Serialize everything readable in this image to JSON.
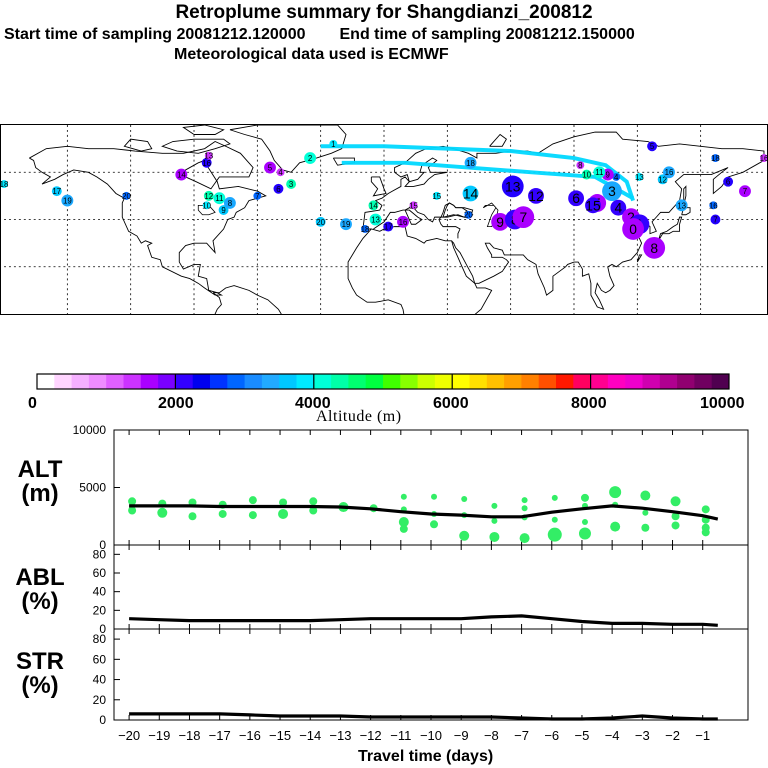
{
  "title": {
    "line1": "Retroplume summary for Shangdianzi_200812",
    "start": "Start time of sampling 20081212.120000",
    "end": "End time of sampling 20081212.150000",
    "line3": "Meteorological data used is ECMWF"
  },
  "map": {
    "markers": [
      {
        "label": "18",
        "lon": -180,
        "lat": 55
      },
      {
        "label": "17",
        "lon": -155,
        "lat": 52
      },
      {
        "label": "19",
        "lon": -150,
        "lat": 48
      },
      {
        "label": "20",
        "lon": -122,
        "lat": 50
      },
      {
        "label": "16",
        "lon": -84,
        "lat": 64
      },
      {
        "label": "14",
        "lon": -96,
        "lat": 59
      },
      {
        "label": "13",
        "lon": -83,
        "lat": 67
      },
      {
        "label": "12",
        "lon": -83,
        "lat": 50
      },
      {
        "label": "11",
        "lon": -78,
        "lat": 49
      },
      {
        "label": "10",
        "lon": -84,
        "lat": 46
      },
      {
        "label": "9",
        "lon": -76,
        "lat": 44
      },
      {
        "label": "8",
        "lon": -73,
        "lat": 47
      },
      {
        "label": "7",
        "lon": -60,
        "lat": 50
      },
      {
        "label": "6",
        "lon": -50,
        "lat": 53
      },
      {
        "label": "5",
        "lon": -54,
        "lat": 62
      },
      {
        "label": "4",
        "lon": -49,
        "lat": 60
      },
      {
        "label": "3",
        "lon": -44,
        "lat": 55
      },
      {
        "label": "2",
        "lon": -35,
        "lat": 66
      },
      {
        "label": "1",
        "lon": -24,
        "lat": 72
      },
      {
        "label": "20",
        "lon": -30,
        "lat": 39
      },
      {
        "label": "19",
        "lon": -18,
        "lat": 38
      },
      {
        "label": "18",
        "lon": -9,
        "lat": 36
      },
      {
        "label": "17",
        "lon": 2,
        "lat": 37
      },
      {
        "label": "16",
        "lon": 9,
        "lat": 39
      },
      {
        "label": "15",
        "lon": 14,
        "lat": 46
      },
      {
        "label": "14",
        "lon": -5,
        "lat": 46
      },
      {
        "label": "13",
        "lon": -4,
        "lat": 40
      },
      {
        "label": "15",
        "lon": 25,
        "lat": 50
      },
      {
        "label": "14",
        "lon": 41,
        "lat": 51
      },
      {
        "label": "18",
        "lon": 41,
        "lat": 64
      },
      {
        "label": "20",
        "lon": 40,
        "lat": 42
      },
      {
        "label": "13",
        "lon": 61,
        "lat": 54
      },
      {
        "label": "12",
        "lon": 72,
        "lat": 50
      },
      {
        "label": "9",
        "lon": 55,
        "lat": 39
      },
      {
        "label": "8",
        "lon": 62,
        "lat": 40
      },
      {
        "label": "7",
        "lon": 66,
        "lat": 41
      },
      {
        "label": "6",
        "lon": 91,
        "lat": 49
      },
      {
        "label": "5",
        "lon": 101,
        "lat": 47
      },
      {
        "label": "3",
        "lon": 108,
        "lat": 52
      },
      {
        "label": "4",
        "lon": 110,
        "lat": 58
      },
      {
        "label": "5",
        "lon": 127,
        "lat": 71
      },
      {
        "label": "9",
        "lon": 106,
        "lat": 59
      },
      {
        "label": "8",
        "lon": 93,
        "lat": 63
      },
      {
        "label": "10",
        "lon": 96,
        "lat": 59
      },
      {
        "label": "11",
        "lon": 102,
        "lat": 60
      },
      {
        "label": "13",
        "lon": 121,
        "lat": 58
      },
      {
        "label": "12",
        "lon": 132,
        "lat": 57
      },
      {
        "label": "16",
        "lon": 135,
        "lat": 60
      },
      {
        "label": "18",
        "lon": 157,
        "lat": 66
      },
      {
        "label": "6",
        "lon": 163,
        "lat": 56
      },
      {
        "label": "7",
        "lon": 171,
        "lat": 52
      },
      {
        "label": "16",
        "lon": 180,
        "lat": 66
      },
      {
        "label": "4",
        "lon": 111,
        "lat": 45
      },
      {
        "label": "2",
        "lon": 117,
        "lat": 41
      },
      {
        "label": "1",
        "lon": 121,
        "lat": 38
      },
      {
        "label": "0",
        "lon": 118,
        "lat": 36
      },
      {
        "label": "13",
        "lon": 141,
        "lat": 46
      },
      {
        "label": "16",
        "lon": 156,
        "lat": 46
      },
      {
        "label": "7",
        "lon": 157,
        "lat": 40
      },
      {
        "label": "8",
        "lon": 128,
        "lat": 28
      },
      {
        "label": "15",
        "lon": 99,
        "lat": 46
      }
    ]
  },
  "colorbar": {
    "tick_labels": [
      "0",
      "2000",
      "4000",
      "6000",
      "8000",
      "10000"
    ],
    "unit_label": "Altitude (m)",
    "colors": [
      "#ffffff",
      "#ffd5ff",
      "#f5b0ff",
      "#ee8cff",
      "#e060ff",
      "#cc33ff",
      "#aa00ff",
      "#7a00ff",
      "#3300ff",
      "#0000ee",
      "#0033ff",
      "#0066ff",
      "#1a8cff",
      "#22aaff",
      "#00c8ff",
      "#00eaff",
      "#00ffd8",
      "#00ffa8",
      "#00ff70",
      "#00ff40",
      "#40ff00",
      "#88ff00",
      "#ccff00",
      "#eeff00",
      "#ffff00",
      "#ffe000",
      "#ffc000",
      "#ffa000",
      "#ff8000",
      "#ff5000",
      "#ff1800",
      "#ff0060",
      "#ff0090",
      "#ff00c0",
      "#ee00cc",
      "#d000b0",
      "#b00090",
      "#900070",
      "#700060",
      "#500050"
    ]
  },
  "panels": {
    "alt": {
      "label_top": "ALT",
      "label_bottom": "(m)"
    },
    "abl": {
      "label_top": "ABL",
      "label_bottom": "(%)"
    },
    "str": {
      "label_top": "STR",
      "label_bottom": "(%)"
    }
  },
  "chart_data": [
    {
      "type": "scatter",
      "name": "ALT",
      "title": "Altitude",
      "ylabel": "ALT (m)",
      "xlim": [
        -20.5,
        0.5
      ],
      "ylim": [
        0,
        10000
      ],
      "yticks": [
        0,
        5000,
        10000
      ],
      "line": {
        "x": [
          -20,
          -19,
          -18,
          -17,
          -16,
          -15,
          -14,
          -13,
          -12,
          -11,
          -10,
          -9,
          -8,
          -7,
          -6,
          -5,
          -4,
          -3,
          -2,
          -1,
          -0.5
        ],
        "y": [
          3400,
          3400,
          3400,
          3350,
          3350,
          3350,
          3350,
          3300,
          3150,
          2900,
          2700,
          2600,
          2450,
          2450,
          2850,
          3150,
          3400,
          3200,
          2900,
          2550,
          2250
        ]
      },
      "points": [
        {
          "x": -19.9,
          "y": 3800,
          "s": 4
        },
        {
          "x": -19.9,
          "y": 3000,
          "s": 4
        },
        {
          "x": -18.9,
          "y": 3600,
          "s": 4
        },
        {
          "x": -18.9,
          "y": 2800,
          "s": 5
        },
        {
          "x": -17.9,
          "y": 3700,
          "s": 4
        },
        {
          "x": -17.9,
          "y": 2500,
          "s": 4
        },
        {
          "x": -16.9,
          "y": 3500,
          "s": 4
        },
        {
          "x": -16.9,
          "y": 2700,
          "s": 4
        },
        {
          "x": -15.9,
          "y": 3900,
          "s": 4
        },
        {
          "x": -15.9,
          "y": 2600,
          "s": 4
        },
        {
          "x": -14.9,
          "y": 3700,
          "s": 4
        },
        {
          "x": -14.9,
          "y": 2700,
          "s": 5
        },
        {
          "x": -13.9,
          "y": 3800,
          "s": 4
        },
        {
          "x": -13.9,
          "y": 3000,
          "s": 4
        },
        {
          "x": -12.9,
          "y": 3300,
          "s": 5
        },
        {
          "x": -11.9,
          "y": 3200,
          "s": 4
        },
        {
          "x": -10.9,
          "y": 4200,
          "s": 3
        },
        {
          "x": -10.9,
          "y": 3100,
          "s": 3
        },
        {
          "x": -10.9,
          "y": 2000,
          "s": 5
        },
        {
          "x": -10.9,
          "y": 1400,
          "s": 4
        },
        {
          "x": -9.9,
          "y": 4200,
          "s": 3
        },
        {
          "x": -9.9,
          "y": 2700,
          "s": 3
        },
        {
          "x": -9.9,
          "y": 1800,
          "s": 4
        },
        {
          "x": -8.9,
          "y": 4000,
          "s": 3
        },
        {
          "x": -8.9,
          "y": 2600,
          "s": 3
        },
        {
          "x": -8.9,
          "y": 800,
          "s": 5
        },
        {
          "x": -7.9,
          "y": 3400,
          "s": 3
        },
        {
          "x": -7.9,
          "y": 2100,
          "s": 3
        },
        {
          "x": -7.9,
          "y": 700,
          "s": 5
        },
        {
          "x": -6.9,
          "y": 3900,
          "s": 3
        },
        {
          "x": -6.9,
          "y": 3200,
          "s": 3
        },
        {
          "x": -6.9,
          "y": 2400,
          "s": 3
        },
        {
          "x": -6.9,
          "y": 600,
          "s": 5
        },
        {
          "x": -5.9,
          "y": 4100,
          "s": 3
        },
        {
          "x": -5.9,
          "y": 2200,
          "s": 3
        },
        {
          "x": -5.9,
          "y": 900,
          "s": 7
        },
        {
          "x": -4.9,
          "y": 4100,
          "s": 4
        },
        {
          "x": -4.9,
          "y": 3400,
          "s": 3
        },
        {
          "x": -4.9,
          "y": 2000,
          "s": 3
        },
        {
          "x": -4.9,
          "y": 1000,
          "s": 6
        },
        {
          "x": -3.9,
          "y": 4600,
          "s": 6
        },
        {
          "x": -3.9,
          "y": 3500,
          "s": 3
        },
        {
          "x": -3.9,
          "y": 1600,
          "s": 5
        },
        {
          "x": -2.9,
          "y": 4300,
          "s": 5
        },
        {
          "x": -2.9,
          "y": 2800,
          "s": 3
        },
        {
          "x": -2.9,
          "y": 1500,
          "s": 4
        },
        {
          "x": -1.9,
          "y": 3800,
          "s": 5
        },
        {
          "x": -1.9,
          "y": 2500,
          "s": 4
        },
        {
          "x": -1.9,
          "y": 1700,
          "s": 4
        },
        {
          "x": -0.9,
          "y": 3100,
          "s": 4
        },
        {
          "x": -0.9,
          "y": 2200,
          "s": 4
        },
        {
          "x": -0.9,
          "y": 1500,
          "s": 4
        },
        {
          "x": -0.9,
          "y": 1100,
          "s": 4
        }
      ]
    },
    {
      "type": "line",
      "name": "ABL",
      "ylabel": "ABL (%)",
      "xlim": [
        -20.5,
        0.5
      ],
      "ylim": [
        0,
        90
      ],
      "yticks": [
        0,
        20,
        40,
        60,
        80
      ],
      "x": [
        -20,
        -19,
        -18,
        -17,
        -16,
        -15,
        -14,
        -13,
        -12,
        -11,
        -10,
        -9,
        -8,
        -7,
        -6,
        -5,
        -4,
        -3,
        -2,
        -1,
        -0.5
      ],
      "y": [
        11,
        10,
        9,
        9,
        9,
        9,
        9,
        10,
        11,
        11,
        11,
        11,
        13,
        14,
        11,
        8,
        6,
        6,
        5,
        5,
        4
      ]
    },
    {
      "type": "line",
      "name": "STR",
      "ylabel": "STR (%)",
      "xlim": [
        -20.5,
        0.5
      ],
      "ylim": [
        0,
        90
      ],
      "yticks": [
        0,
        20,
        40,
        60,
        80
      ],
      "x": [
        -20,
        -19,
        -18,
        -17,
        -16,
        -15,
        -14,
        -13,
        -12,
        -11,
        -10,
        -9,
        -8,
        -7,
        -6,
        -5,
        -4,
        -3,
        -2,
        -1,
        -0.5
      ],
      "y": [
        6,
        6,
        6,
        6,
        5,
        4,
        4,
        4,
        3,
        3,
        3,
        3,
        3,
        2,
        1,
        1,
        2,
        4,
        2,
        1,
        1
      ]
    }
  ],
  "xaxis": {
    "label": "Travel time (days)",
    "ticks": [
      -20,
      -19,
      -18,
      -17,
      -16,
      -15,
      -14,
      -13,
      -12,
      -11,
      -10,
      -9,
      -8,
      -7,
      -6,
      -5,
      -4,
      -3,
      -2,
      -1
    ],
    "tick_labels": [
      "−20",
      "−19",
      "−18",
      "−17",
      "−16",
      "−15",
      "−14",
      "−13",
      "−12",
      "−11",
      "−10",
      "−9",
      "−8",
      "−7",
      "−6",
      "−5",
      "−4",
      "−3",
      "−2",
      "−1"
    ]
  }
}
